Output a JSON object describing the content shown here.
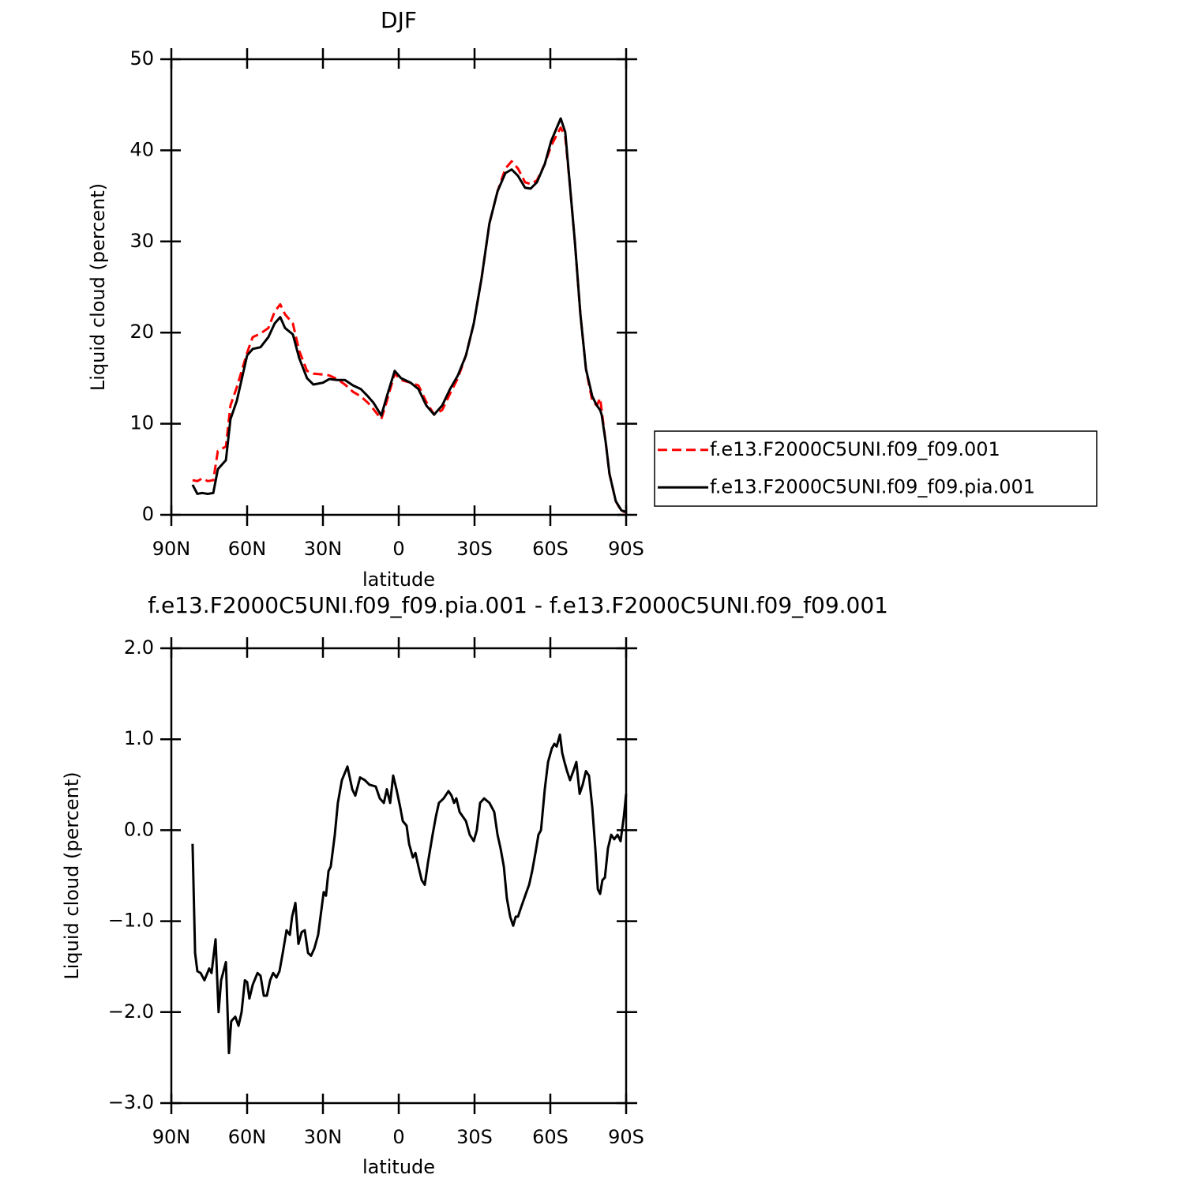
{
  "chart_data": [
    {
      "type": "line",
      "title": "DJF",
      "x_label": "latitude",
      "y_label": "Liquid cloud (percent)",
      "x": [
        81.6,
        79.7,
        77.8,
        75.6,
        73.4,
        71.6,
        68.4,
        66.6,
        64.1,
        60,
        57.8,
        54.7,
        51.6,
        49.1,
        46.9,
        45,
        41.9,
        39.4,
        36.3,
        33.8,
        30,
        27.5,
        24.4,
        21.3,
        18.1,
        15,
        12.2,
        10,
        6.9,
        4.7,
        1.6,
        -0.9,
        -4.7,
        -7.8,
        -10.9,
        -14,
        -17.2,
        -20.3,
        -23.4,
        -26.6,
        -29.7,
        -32.8,
        -35.9,
        -39.1,
        -42.2,
        -44.7,
        -47.2,
        -50,
        -52.2,
        -54.7,
        -57.8,
        -60.3,
        -64.1,
        -65.9,
        -67.8,
        -69.7,
        -71.9,
        -74.1,
        -76.6,
        -78.4,
        -79.7,
        -80.3,
        -81.9,
        -83.4,
        -85.9,
        -88.1,
        -90
      ],
      "series": [
        {
          "name": "f.e13.F2000C5UNI.f09_f09.001",
          "color": "#ff0000",
          "dash": true,
          "values": [
            3.8,
            3.7,
            4.0,
            3.7,
            3.8,
            7.0,
            7.5,
            12.0,
            14.0,
            17.8,
            19.5,
            19.9,
            20.5,
            22.3,
            23.1,
            22.0,
            21.0,
            18.0,
            15.8,
            15.5,
            15.4,
            15.3,
            14.9,
            14.3,
            13.5,
            13.0,
            12.3,
            11.6,
            10.5,
            12.5,
            15.5,
            14.8,
            14.5,
            14.2,
            12.4,
            11.0,
            11.5,
            13.3,
            15.0,
            17.5,
            21.0,
            26.0,
            32.0,
            35.5,
            38.0,
            38.8,
            38.0,
            36.5,
            36.3,
            36.7,
            38.5,
            40.5,
            42.5,
            41.5,
            36.0,
            30.0,
            22.0,
            16.0,
            12.5,
            12.0,
            12.8,
            11.5,
            8.0,
            4.5,
            1.5,
            0.4,
            0.3
          ]
        },
        {
          "name": "f.e13.F2000C5UNI.f09_f09.pia.001",
          "color": "#000000",
          "dash": false,
          "values": [
            3.3,
            2.3,
            2.4,
            2.3,
            2.4,
            5.0,
            6.0,
            10.5,
            12.5,
            17.5,
            18.2,
            18.4,
            19.5,
            21.0,
            21.7,
            20.5,
            19.8,
            17.2,
            15.0,
            14.3,
            14.5,
            14.9,
            14.8,
            14.8,
            14.2,
            13.8,
            13.0,
            12.3,
            10.9,
            13.0,
            15.8,
            15.0,
            14.5,
            13.8,
            12.0,
            11.0,
            12.0,
            13.8,
            15.3,
            17.5,
            21.0,
            26.0,
            32.0,
            35.5,
            37.5,
            37.9,
            37.2,
            35.9,
            35.8,
            36.5,
            38.5,
            41.0,
            43.5,
            42.0,
            36.0,
            30.0,
            22.0,
            16.0,
            13.0,
            12.0,
            11.5,
            11.0,
            8.0,
            4.5,
            1.5,
            0.5,
            0.3
          ]
        }
      ],
      "xlim": [
        90,
        -90
      ],
      "xticks": [
        {
          "value": 90,
          "label": "90N"
        },
        {
          "value": 60,
          "label": "60N"
        },
        {
          "value": 30,
          "label": "30N"
        },
        0,
        {
          "value": -30,
          "label": "30S"
        },
        {
          "value": -60,
          "label": "60S"
        },
        {
          "value": -90,
          "label": "90S"
        }
      ],
      "ylim": [
        0,
        50
      ],
      "yticks": [
        0,
        10,
        20,
        30,
        40,
        50
      ],
      "legend": "right"
    },
    {
      "type": "line",
      "title": "f.e13.F2000C5UNI.f09_f09.pia.001 - f.e13.F2000C5UNI.f09_f09.001",
      "x_label": "latitude",
      "y_label": "Liquid cloud (percent)",
      "x": [
        81.6,
        80.6,
        79.7,
        78.4,
        76.9,
        75.0,
        74.1,
        72.5,
        71.3,
        70.3,
        68.4,
        67.2,
        66.3,
        64.7,
        63.4,
        62.2,
        60.9,
        60.0,
        59.1,
        57.8,
        55.9,
        54.7,
        53.4,
        52.2,
        50.9,
        49.7,
        48.4,
        47.2,
        45.9,
        44.4,
        43.1,
        42.2,
        40.9,
        39.7,
        38.4,
        37.2,
        35.9,
        34.7,
        33.4,
        31.9,
        29.7,
        28.8,
        27.8,
        26.9,
        25.3,
        24.1,
        22.5,
        20.3,
        18.4,
        17.2,
        15.3,
        13.4,
        11.6,
        9.1,
        7.5,
        5.9,
        4.7,
        3.4,
        2.2,
        0.9,
        -0.6,
        -1.6,
        -3.1,
        -4.1,
        -5.6,
        -6.6,
        -7.8,
        -9.1,
        -10.3,
        -11.6,
        -13.4,
        -14.7,
        -15.9,
        -17.8,
        -19.7,
        -20.9,
        -21.9,
        -22.8,
        -24.1,
        -26.6,
        -28.1,
        -29.7,
        -30.9,
        -32.2,
        -33.8,
        -35.9,
        -37.8,
        -39.1,
        -40.3,
        -41.6,
        -42.8,
        -44.1,
        -45.3,
        -46.3,
        -47.2,
        -48.4,
        -50.3,
        -51.6,
        -52.8,
        -54.1,
        -55.3,
        -56.3,
        -57.8,
        -59.1,
        -60.6,
        -61.6,
        -62.5,
        -63.8,
        -64.7,
        -65.6,
        -66.6,
        -67.8,
        -69.1,
        -70.3,
        -71.6,
        -72.8,
        -74.1,
        -75.3,
        -76.6,
        -77.8,
        -78.8,
        -79.7,
        -80.6,
        -81.6,
        -82.8,
        -84.1,
        -85.3,
        -86.6,
        -87.8,
        -89.1,
        -90.0
      ],
      "series": [
        {
          "color": "#000000",
          "dash": false,
          "values": [
            -0.15,
            -1.35,
            -1.55,
            -1.57,
            -1.65,
            -1.52,
            -1.57,
            -1.2,
            -2.0,
            -1.65,
            -1.45,
            -2.45,
            -2.1,
            -2.05,
            -2.15,
            -2.0,
            -1.65,
            -1.67,
            -1.85,
            -1.7,
            -1.57,
            -1.6,
            -1.82,
            -1.82,
            -1.65,
            -1.57,
            -1.62,
            -1.55,
            -1.35,
            -1.1,
            -1.15,
            -0.95,
            -0.8,
            -1.25,
            -1.12,
            -1.1,
            -1.35,
            -1.38,
            -1.3,
            -1.15,
            -0.68,
            -0.72,
            -0.45,
            -0.4,
            -0.05,
            0.3,
            0.55,
            0.7,
            0.45,
            0.38,
            0.58,
            0.55,
            0.5,
            0.48,
            0.35,
            0.3,
            0.45,
            0.3,
            0.6,
            0.45,
            0.25,
            0.1,
            0.05,
            -0.15,
            -0.3,
            -0.25,
            -0.4,
            -0.55,
            -0.6,
            -0.35,
            -0.05,
            0.15,
            0.3,
            0.35,
            0.43,
            0.38,
            0.3,
            0.35,
            0.2,
            0.1,
            -0.05,
            -0.12,
            0.0,
            0.3,
            0.35,
            0.3,
            0.2,
            -0.05,
            -0.2,
            -0.4,
            -0.75,
            -0.95,
            -1.05,
            -0.95,
            -0.95,
            -0.85,
            -0.7,
            -0.6,
            -0.45,
            -0.25,
            -0.05,
            0.0,
            0.45,
            0.75,
            0.9,
            0.95,
            0.92,
            1.05,
            0.85,
            0.75,
            0.65,
            0.55,
            0.65,
            0.75,
            0.4,
            0.5,
            0.65,
            0.6,
            0.25,
            -0.2,
            -0.65,
            -0.7,
            -0.55,
            -0.52,
            -0.2,
            -0.05,
            -0.1,
            -0.05,
            -0.12,
            0.15,
            0.4
          ]
        }
      ],
      "xlim": [
        90,
        -90
      ],
      "xticks": [
        {
          "value": 90,
          "label": "90N"
        },
        {
          "value": 60,
          "label": "60N"
        },
        {
          "value": 30,
          "label": "30N"
        },
        0,
        {
          "value": -30,
          "label": "30S"
        },
        {
          "value": -60,
          "label": "60S"
        },
        {
          "value": -90,
          "label": "90S"
        }
      ],
      "ylim": [
        -3.0,
        2.0
      ],
      "yticks": [
        {
          "value": -3.0,
          "label": "−3.0"
        },
        {
          "value": -2.0,
          "label": "−2.0"
        },
        {
          "value": -1.0,
          "label": "−1.0"
        },
        {
          "value": 0.0,
          "label": "0.0"
        },
        {
          "value": 1.0,
          "label": "1.0"
        },
        {
          "value": 2.0,
          "label": "2.0"
        }
      ]
    }
  ]
}
